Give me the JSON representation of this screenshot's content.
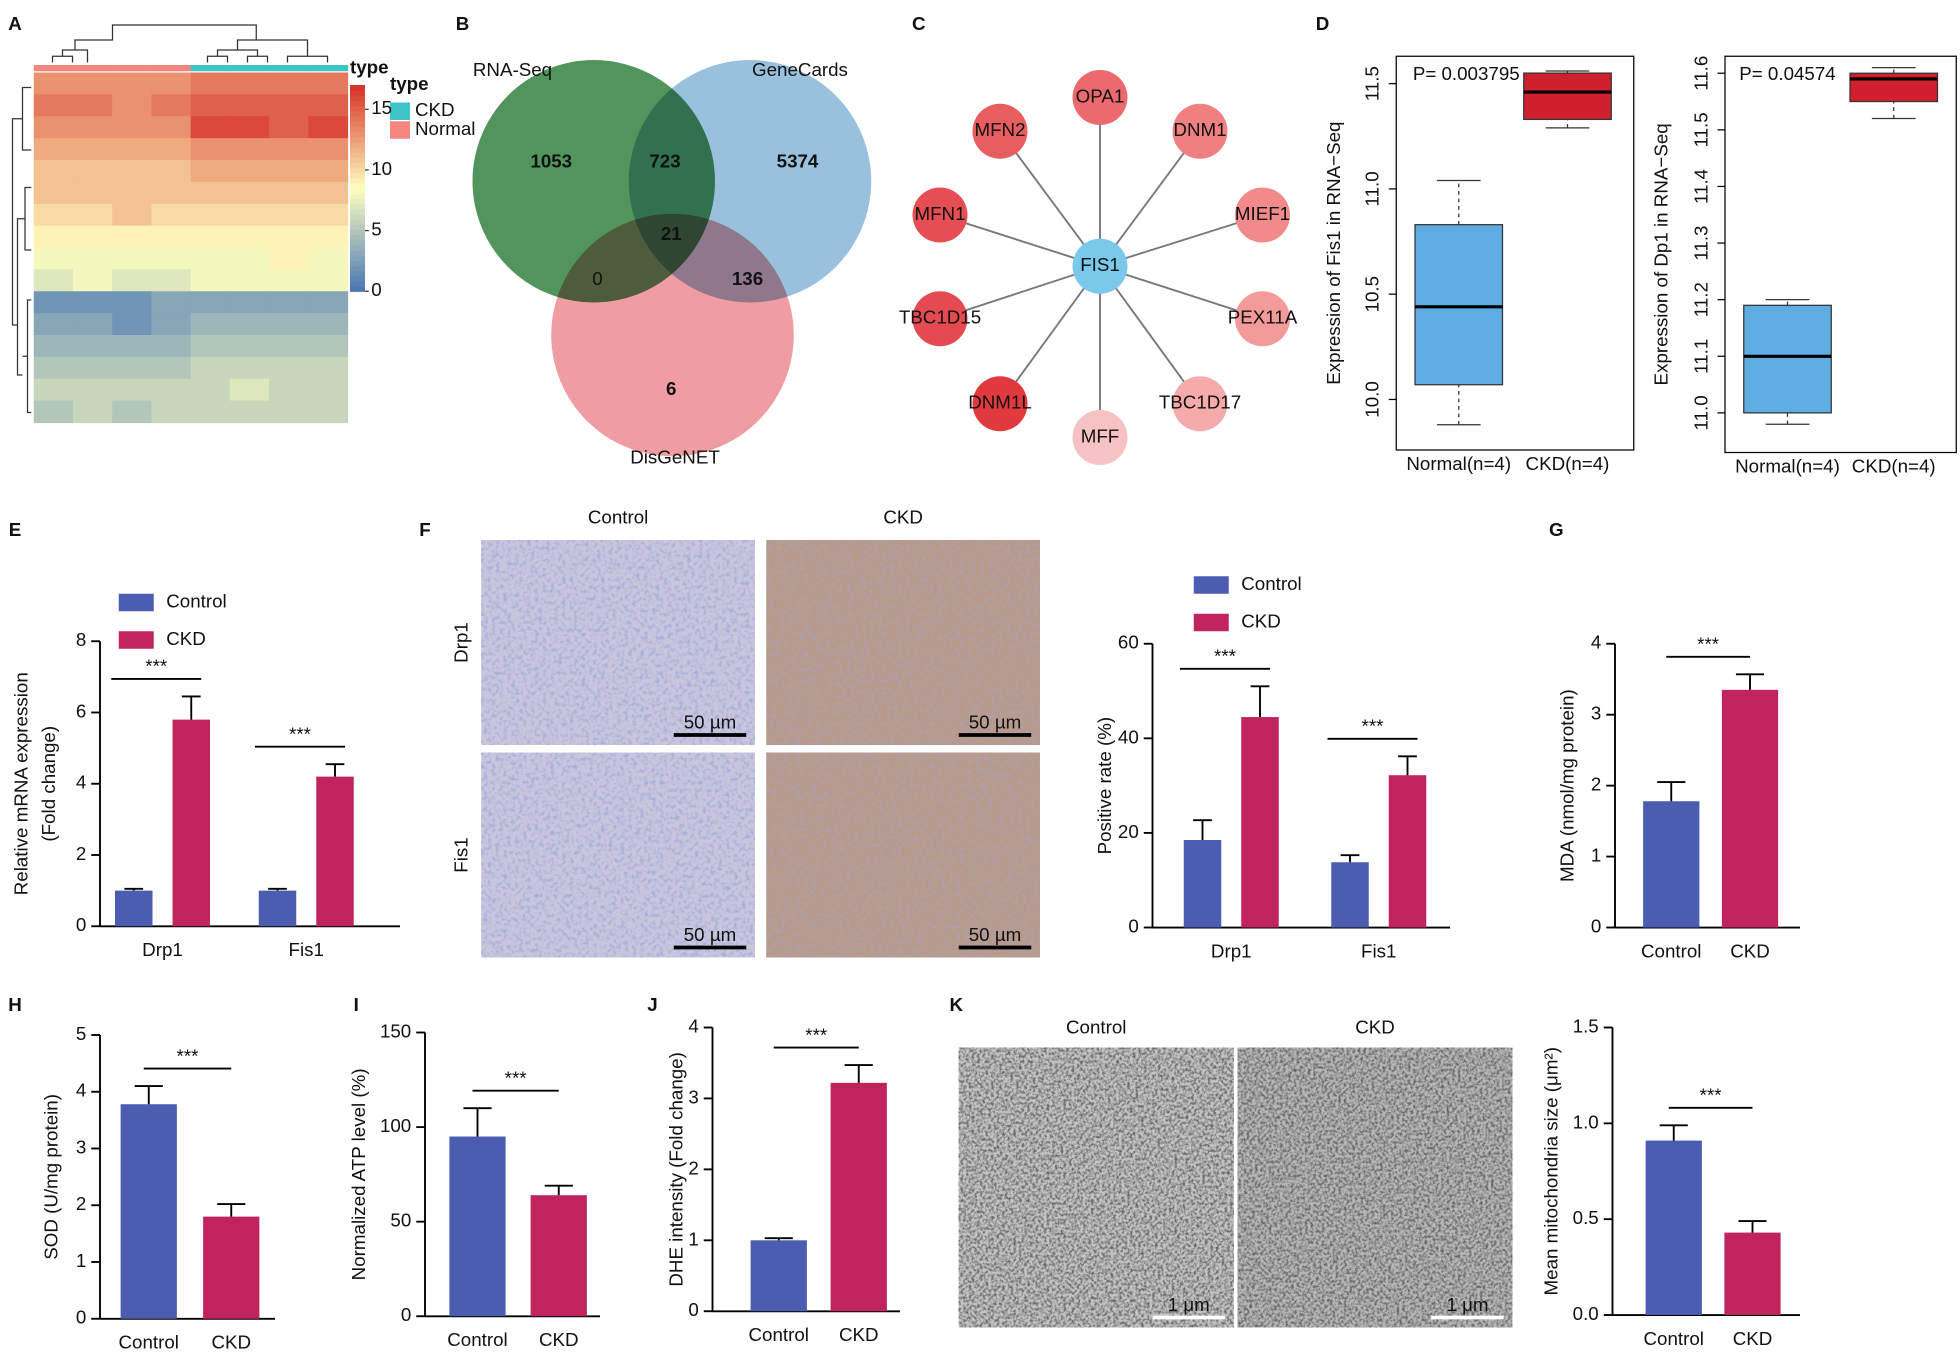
{
  "chart_data": [
    {
      "type": "heatmap",
      "label": "A",
      "legend_title": "type",
      "legend": [
        {
          "name": "CKD",
          "color": "#3ec4c6"
        },
        {
          "name": "Normal",
          "color": "#f3877f"
        }
      ],
      "column_type": [
        "Normal",
        "Normal",
        "Normal",
        "Normal",
        "CKD",
        "CKD",
        "CKD",
        "CKD"
      ],
      "values": [
        [
          13,
          13,
          13,
          13,
          14,
          14,
          14,
          14
        ],
        [
          14,
          14,
          13,
          14,
          15,
          15,
          15,
          15
        ],
        [
          13,
          13,
          13,
          13,
          16,
          16,
          15,
          16
        ],
        [
          12,
          12,
          12,
          12,
          13,
          13,
          13,
          13
        ],
        [
          11,
          11,
          11,
          11,
          12,
          12,
          12,
          12
        ],
        [
          11,
          11,
          11,
          11,
          11,
          11,
          11,
          11
        ],
        [
          10,
          10,
          11,
          10,
          10,
          10,
          10,
          10
        ],
        [
          9,
          9,
          9,
          9,
          9,
          9,
          9,
          9
        ],
        [
          8,
          8,
          8,
          8,
          8,
          8,
          9,
          8
        ],
        [
          7,
          8,
          7,
          7,
          8,
          8,
          8,
          8
        ],
        [
          2,
          2,
          2,
          3,
          3,
          3,
          3,
          3
        ],
        [
          3,
          3,
          2,
          3,
          4,
          4,
          4,
          4
        ],
        [
          4,
          4,
          4,
          4,
          5,
          5,
          5,
          5
        ],
        [
          5,
          5,
          5,
          5,
          6,
          6,
          6,
          6
        ],
        [
          6,
          6,
          6,
          6,
          6,
          7,
          6,
          6
        ],
        [
          5,
          6,
          5,
          6,
          6,
          6,
          6,
          6
        ]
      ],
      "clim": [
        0,
        17
      ],
      "colorbar_ticks": [
        0,
        5,
        10,
        15
      ],
      "colormap": [
        "#4575b4",
        "#ffffbf",
        "#d73027"
      ]
    },
    {
      "type": "venn",
      "label": "B",
      "sets": [
        {
          "name": "RNA-Seq",
          "color": "#3f8a4a"
        },
        {
          "name": "GeneCards",
          "color": "#6ea6cf"
        },
        {
          "name": "DisGeNET",
          "color": "#e8737b"
        }
      ],
      "values": [
        1053,
        723,
        5374,
        21,
        0,
        136,
        6
      ]
    },
    {
      "type": "network",
      "label": "C",
      "center": {
        "name": "FIS1",
        "color": "#7ac8ea"
      },
      "nodes": [
        {
          "name": "OPA1",
          "color": "#ec6a6e"
        },
        {
          "name": "DNM1",
          "color": "#f07f82"
        },
        {
          "name": "MIEF1",
          "color": "#f28a8c"
        },
        {
          "name": "PEX11A",
          "color": "#f39a9b"
        },
        {
          "name": "TBC1D17",
          "color": "#f5aaab"
        },
        {
          "name": "MFF",
          "color": "#f7c2c3"
        },
        {
          "name": "DNM1L",
          "color": "#e03a3f"
        },
        {
          "name": "TBC1D15",
          "color": "#e44a4f"
        },
        {
          "name": "MFN1",
          "color": "#e54e52"
        },
        {
          "name": "MFN2",
          "color": "#e85d60"
        }
      ]
    },
    {
      "type": "box",
      "label": "D",
      "ylabel": "Expression of Fis1 in RNA−Seq",
      "annotation": "P= 0.003795",
      "categories": [
        "Normal(n=4)",
        "CKD(n=4)"
      ],
      "colors": [
        "#5dade2",
        "#d0202e"
      ],
      "boxes": [
        {
          "min": 9.88,
          "q1": 10.07,
          "median": 10.44,
          "q3": 10.83,
          "max": 11.04
        },
        {
          "min": 11.29,
          "q1": 11.33,
          "median": 11.46,
          "q3": 11.55,
          "max": 11.56
        }
      ],
      "ylim": [
        9.76,
        11.63
      ],
      "yticks": [
        {
          "value": 10,
          "label": "10.0"
        },
        10.5,
        {
          "value": 11,
          "label": "11.0"
        },
        11.5
      ]
    },
    {
      "type": "box",
      "ylabel": "Expression of Dp1 in RNA−Seq",
      "annotation": "P= 0.04574",
      "categories": [
        "Normal(n=4)",
        "CKD(n=4)"
      ],
      "colors": [
        "#5dade2",
        "#d0202e"
      ],
      "boxes": [
        {
          "min": 10.98,
          "q1": 11.0,
          "median": 11.1,
          "q3": 11.19,
          "max": 11.2
        },
        {
          "min": 11.52,
          "q1": 11.55,
          "median": 11.59,
          "q3": 11.6,
          "max": 11.61
        }
      ],
      "ylim": [
        10.93,
        11.63
      ],
      "yticks": [
        {
          "value": 11,
          "label": "11.0"
        },
        11.1,
        11.2,
        11.3,
        11.4,
        11.5,
        11.6
      ]
    },
    {
      "type": "bar",
      "label": "E",
      "ylabel": [
        "Relative mRNA expression",
        "(Fold change)"
      ],
      "categories": [
        "Drp1",
        "Fis1"
      ],
      "series": [
        {
          "name": "Control",
          "color": "#4a5db0",
          "values": [
            1.0,
            1.0
          ],
          "errors": [
            0.05,
            0.05
          ]
        },
        {
          "name": "CKD",
          "color": "#c0245f",
          "values": [
            5.8,
            4.2
          ],
          "errors": [
            0.65,
            0.35
          ]
        }
      ],
      "significance": [
        "***",
        "***"
      ],
      "ylim": [
        0,
        8
      ],
      "yticks": [
        0,
        2,
        4,
        6,
        8
      ]
    },
    {
      "type": "micrograph",
      "label": "F",
      "columns": [
        "Control",
        "CKD"
      ],
      "rows": [
        "Drp1",
        "Fis1"
      ],
      "scale_bars": [
        "50 µm",
        "50 µm",
        "50 µm",
        "50 µm"
      ]
    },
    {
      "type": "bar",
      "ylabel": "Positive rate (%)",
      "categories": [
        "Drp1",
        "Fis1"
      ],
      "series": [
        {
          "name": "Control",
          "color": "#4a5db0",
          "values": [
            18.5,
            13.8
          ],
          "errors": [
            4.2,
            1.5
          ]
        },
        {
          "name": "CKD",
          "color": "#c0245f",
          "values": [
            44.5,
            32.2
          ],
          "errors": [
            6.5,
            4
          ]
        }
      ],
      "significance": [
        "***",
        "***"
      ],
      "ylim": [
        0,
        60
      ],
      "yticks": [
        0,
        20,
        40,
        60
      ]
    },
    {
      "type": "bar",
      "label": "G",
      "ylabel": "MDA (nmol/mg protein)",
      "categories": [
        "Control",
        "CKD"
      ],
      "colors": [
        "#4a5db0",
        "#c0245f"
      ],
      "values": [
        1.78,
        3.35
      ],
      "errors": [
        0.27,
        0.22
      ],
      "significance": "***",
      "ylim": [
        0,
        4
      ],
      "yticks": [
        0,
        1,
        2,
        3,
        4
      ]
    },
    {
      "type": "bar",
      "label": "H",
      "ylabel": "SOD (U/mg protein)",
      "categories": [
        "Control",
        "CKD"
      ],
      "colors": [
        "#4a5db0",
        "#c0245f"
      ],
      "values": [
        3.78,
        1.8
      ],
      "errors": [
        0.32,
        0.22
      ],
      "significance": "***",
      "ylim": [
        0,
        5
      ],
      "yticks": [
        0,
        1,
        2,
        3,
        4,
        5
      ]
    },
    {
      "type": "bar",
      "label": "I",
      "ylabel": "Normalized ATP level (%)",
      "categories": [
        "Control",
        "CKD"
      ],
      "colors": [
        "#4a5db0",
        "#c0245f"
      ],
      "values": [
        95,
        64
      ],
      "errors": [
        15,
        5
      ],
      "significance": "***",
      "ylim": [
        0,
        150
      ],
      "yticks": [
        0,
        50,
        100,
        150
      ]
    },
    {
      "type": "bar",
      "label": "J",
      "ylabel": "DHE intensity (Fold change)",
      "categories": [
        "Control",
        "CKD"
      ],
      "colors": [
        "#4a5db0",
        "#c0245f"
      ],
      "values": [
        1.0,
        3.22
      ],
      "errors": [
        0.03,
        0.25
      ],
      "significance": "***",
      "ylim": [
        0,
        4
      ],
      "yticks": [
        0,
        1,
        2,
        3,
        4
      ]
    },
    {
      "type": "micrograph",
      "label": "K",
      "columns": [
        "Control",
        "CKD"
      ],
      "scale_bars": [
        "1 μm",
        "1 μm"
      ]
    },
    {
      "type": "bar",
      "ylabel": "Mean mitochondria size (μm²)",
      "categories": [
        "Control",
        "CKD"
      ],
      "colors": [
        "#4a5db0",
        "#c0245f"
      ],
      "values": [
        0.91,
        0.43
      ],
      "errors": [
        0.08,
        0.06
      ],
      "significance": "***",
      "ylim": [
        0,
        1.5
      ],
      "yticks": [
        {
          "value": 0,
          "label": "0.0"
        },
        0.5,
        {
          "value": 1,
          "label": "1.0"
        },
        1.5
      ]
    }
  ]
}
